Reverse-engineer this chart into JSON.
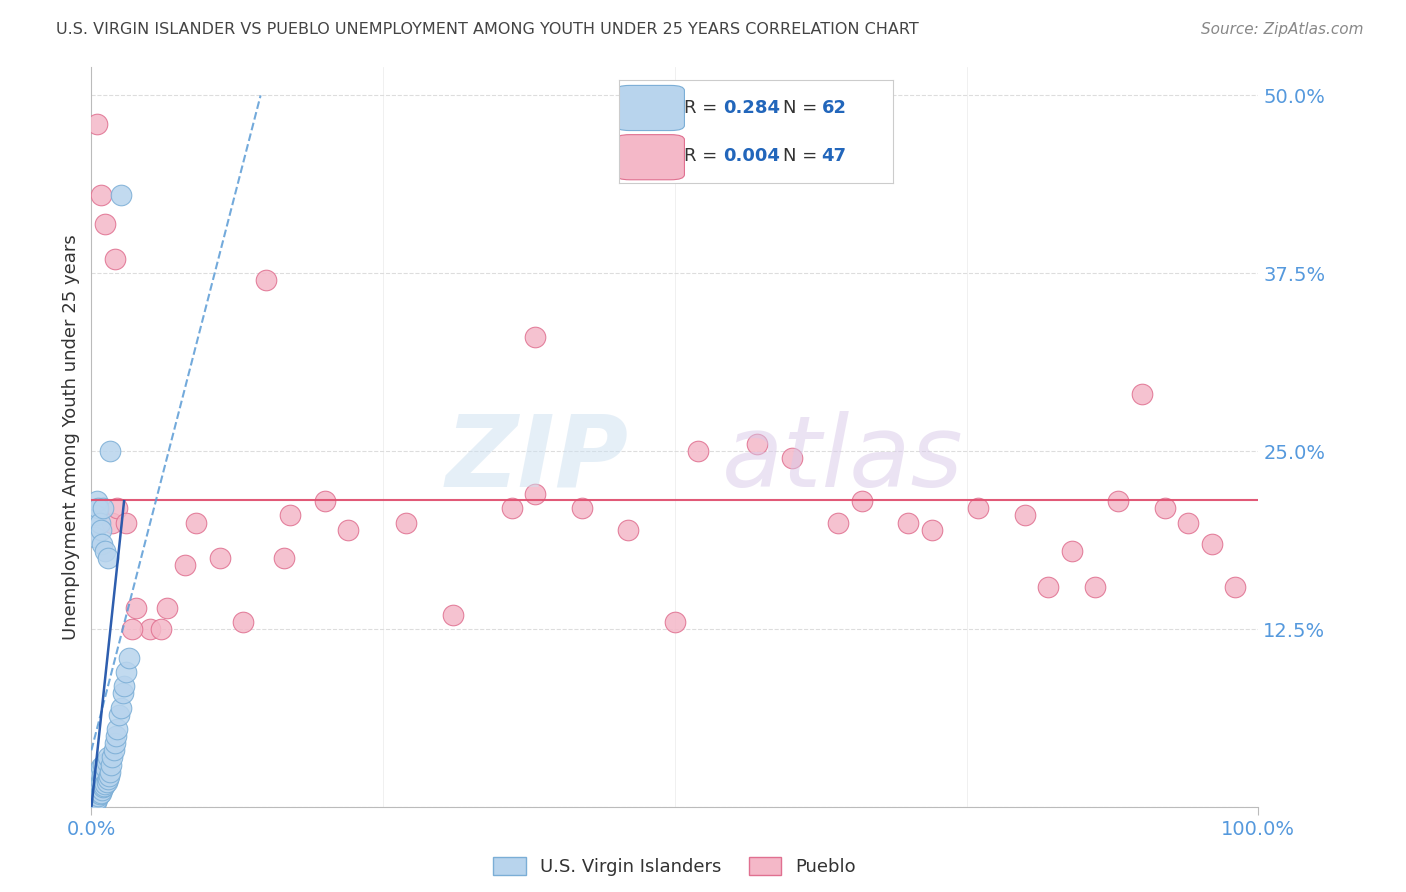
{
  "title": "U.S. VIRGIN ISLANDER VS PUEBLO UNEMPLOYMENT AMONG YOUTH UNDER 25 YEARS CORRELATION CHART",
  "source": "Source: ZipAtlas.com",
  "ylabel": "Unemployment Among Youth under 25 years",
  "xlim": [
    0,
    1
  ],
  "ylim": [
    0,
    0.52
  ],
  "yticks": [
    0,
    0.125,
    0.25,
    0.375,
    0.5
  ],
  "ytick_labels": [
    "",
    "12.5%",
    "25.0%",
    "37.5%",
    "50.0%"
  ],
  "watermark_zip": "ZIP",
  "watermark_atlas": "atlas",
  "series_vi": {
    "name": "U.S. Virgin Islanders",
    "color": "#b8d4ed",
    "edge_color": "#7baed6",
    "trend_color": "#5b9bd5",
    "R": 0.284,
    "N": 62,
    "x": [
      0.002,
      0.002,
      0.003,
      0.003,
      0.003,
      0.003,
      0.004,
      0.004,
      0.004,
      0.004,
      0.005,
      0.005,
      0.005,
      0.005,
      0.006,
      0.006,
      0.006,
      0.007,
      0.007,
      0.007,
      0.008,
      0.008,
      0.008,
      0.009,
      0.009,
      0.01,
      0.01,
      0.01,
      0.011,
      0.011,
      0.012,
      0.012,
      0.013,
      0.013,
      0.014,
      0.014,
      0.015,
      0.016,
      0.017,
      0.018,
      0.019,
      0.02,
      0.021,
      0.022,
      0.024,
      0.025,
      0.027,
      0.028,
      0.03,
      0.032,
      0.003,
      0.004,
      0.005,
      0.006,
      0.007,
      0.008,
      0.009,
      0.01,
      0.012,
      0.014,
      0.016,
      0.025
    ],
    "y": [
      0.005,
      0.01,
      0.003,
      0.007,
      0.012,
      0.018,
      0.004,
      0.008,
      0.015,
      0.022,
      0.006,
      0.01,
      0.016,
      0.025,
      0.008,
      0.014,
      0.02,
      0.009,
      0.016,
      0.024,
      0.01,
      0.018,
      0.028,
      0.012,
      0.022,
      0.014,
      0.02,
      0.03,
      0.015,
      0.025,
      0.016,
      0.028,
      0.018,
      0.032,
      0.02,
      0.035,
      0.022,
      0.025,
      0.03,
      0.035,
      0.04,
      0.045,
      0.05,
      0.055,
      0.065,
      0.07,
      0.08,
      0.085,
      0.095,
      0.105,
      0.19,
      0.205,
      0.215,
      0.21,
      0.2,
      0.195,
      0.185,
      0.21,
      0.18,
      0.175,
      0.25,
      0.43
    ]
  },
  "series_pueblo": {
    "name": "Pueblo",
    "color": "#f4b8c8",
    "edge_color": "#e07090",
    "trend_color": "#e05070",
    "R": 0.004,
    "N": 47,
    "x": [
      0.005,
      0.008,
      0.012,
      0.018,
      0.022,
      0.03,
      0.038,
      0.05,
      0.065,
      0.09,
      0.11,
      0.13,
      0.15,
      0.165,
      0.2,
      0.22,
      0.27,
      0.31,
      0.36,
      0.38,
      0.42,
      0.46,
      0.5,
      0.52,
      0.57,
      0.6,
      0.64,
      0.66,
      0.7,
      0.72,
      0.76,
      0.8,
      0.82,
      0.84,
      0.86,
      0.88,
      0.9,
      0.92,
      0.94,
      0.96,
      0.98,
      0.02,
      0.035,
      0.06,
      0.08,
      0.17,
      0.38
    ],
    "y": [
      0.48,
      0.43,
      0.41,
      0.2,
      0.21,
      0.2,
      0.14,
      0.125,
      0.14,
      0.2,
      0.175,
      0.13,
      0.37,
      0.175,
      0.215,
      0.195,
      0.2,
      0.135,
      0.21,
      0.33,
      0.21,
      0.195,
      0.13,
      0.25,
      0.255,
      0.245,
      0.2,
      0.215,
      0.2,
      0.195,
      0.21,
      0.205,
      0.155,
      0.18,
      0.155,
      0.215,
      0.29,
      0.21,
      0.2,
      0.185,
      0.155,
      0.385,
      0.125,
      0.125,
      0.17,
      0.205,
      0.22
    ]
  },
  "background_color": "#ffffff",
  "grid_color": "#dddddd",
  "title_color": "#444444",
  "source_color": "#888888",
  "axis_label_color": "#333333",
  "tick_color": "#5599dd",
  "legend_R_color": "#2266bb",
  "legend_N_color": "#2266bb"
}
